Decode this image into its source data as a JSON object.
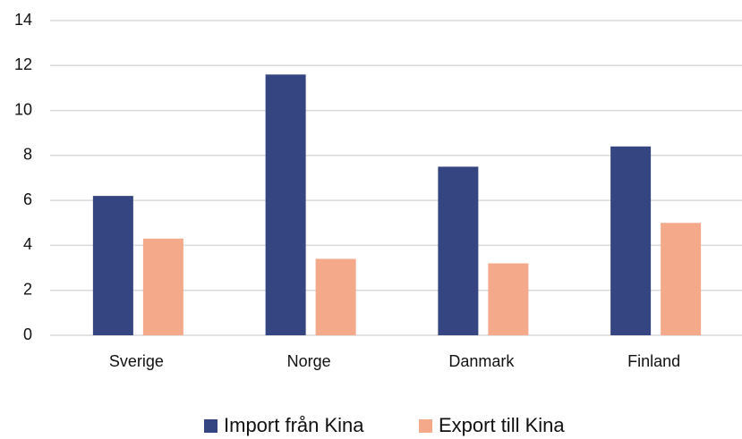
{
  "chart_data": {
    "type": "bar",
    "categories": [
      "Sverige",
      "Norge",
      "Danmark",
      "Finland"
    ],
    "series": [
      {
        "name": "Import från Kina",
        "color": "#354582",
        "values": [
          6.2,
          11.6,
          7.5,
          8.4
        ]
      },
      {
        "name": "Export till Kina",
        "color": "#f4a98a",
        "values": [
          4.3,
          3.4,
          3.2,
          5.0
        ]
      }
    ],
    "ylim": [
      0,
      14
    ],
    "yticks": [
      0,
      2,
      4,
      6,
      8,
      10,
      12,
      14
    ],
    "grid": true,
    "legend": "bottom"
  }
}
